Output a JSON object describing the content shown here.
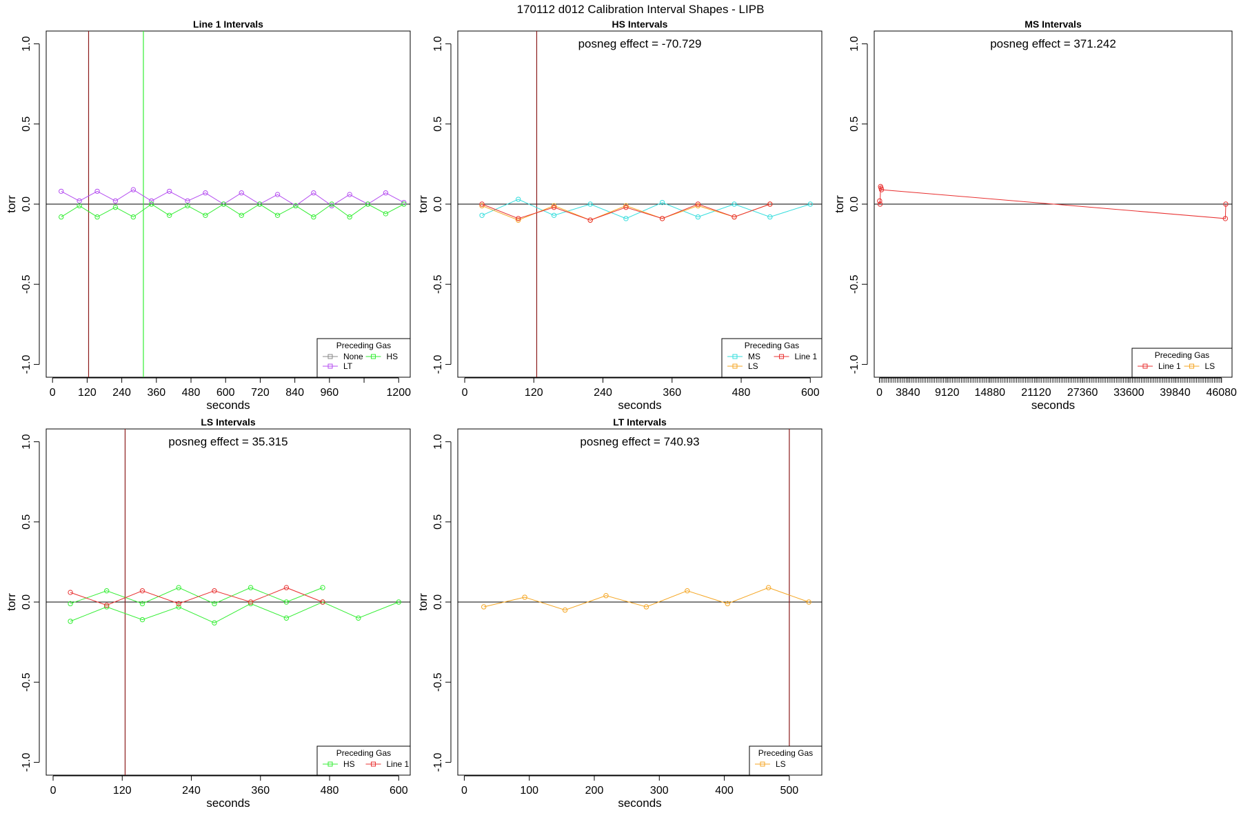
{
  "page": {
    "title": "170112   d012   Calibration Interval Shapes - LIPB"
  },
  "chart_data": [
    {
      "type": "line",
      "title": "Line 1 Intervals",
      "xlabel": "seconds",
      "ylabel": "torr",
      "xlim": [
        -22,
        1240
      ],
      "ylim": [
        -1.08,
        1.08
      ],
      "xticks": [
        0,
        120,
        240,
        360,
        480,
        600,
        720,
        840,
        960,
        1080,
        1200
      ],
      "xtick_labels": [
        "0",
        "120",
        "240",
        "360",
        "480",
        "600",
        "720",
        "840",
        "960",
        "",
        "1200"
      ],
      "yticks": [
        -1.0,
        -0.5,
        0.0,
        0.5,
        1.0
      ],
      "ytick_labels": [
        "-1.0",
        "-0.5",
        "0.0",
        "0.5",
        "1.0"
      ],
      "annotation": "",
      "vlines": [
        {
          "x": 125,
          "color": "#8b1a1a"
        },
        {
          "x": 315,
          "color": "#33ee33"
        }
      ],
      "legend": {
        "title": "Preceding Gas",
        "position": "bottom-right",
        "entries": [
          {
            "label": "None",
            "color": "#888888"
          },
          {
            "label": "HS",
            "color": "#33ee33"
          },
          {
            "label": "LT",
            "color": "#b44cf0"
          }
        ]
      },
      "series": [
        {
          "name": "LT",
          "color": "#b44cf0",
          "x": [
            30,
            93,
            155,
            218,
            280,
            343,
            405,
            468,
            530,
            593,
            655,
            718,
            780,
            843,
            905,
            968,
            1030,
            1093,
            1155,
            1218
          ],
          "y": [
            0.08,
            0.02,
            0.08,
            0.02,
            0.09,
            0.02,
            0.08,
            0.02,
            0.07,
            0.0,
            0.07,
            0.0,
            0.06,
            -0.01,
            0.07,
            -0.01,
            0.06,
            0.0,
            0.07,
            0.01
          ]
        },
        {
          "name": "HS",
          "color": "#33ee33",
          "x": [
            30,
            93,
            155,
            218,
            280,
            343,
            405,
            468,
            530,
            593,
            655,
            718,
            780,
            843,
            905,
            968,
            1030,
            1093,
            1155,
            1218
          ],
          "y": [
            -0.08,
            -0.01,
            -0.08,
            -0.02,
            -0.08,
            0.0,
            -0.07,
            -0.01,
            -0.07,
            0.0,
            -0.07,
            0.0,
            -0.07,
            -0.01,
            -0.08,
            0.0,
            -0.08,
            0.0,
            -0.06,
            0.0
          ]
        }
      ]
    },
    {
      "type": "line",
      "title": "HS Intervals",
      "xlabel": "seconds",
      "ylabel": "torr",
      "xlim": [
        -12,
        620
      ],
      "ylim": [
        -1.08,
        1.08
      ],
      "xticks": [
        0,
        120,
        240,
        360,
        480,
        600
      ],
      "xtick_labels": [
        "0",
        "120",
        "240",
        "360",
        "480",
        "600"
      ],
      "yticks": [
        -1.0,
        -0.5,
        0.0,
        0.5,
        1.0
      ],
      "ytick_labels": [
        "-1.0",
        "-0.5",
        "0.0",
        "0.5",
        "1.0"
      ],
      "annotation": "posneg effect = -70.729",
      "vlines": [
        {
          "x": 125,
          "color": "#8b1a1a"
        }
      ],
      "legend": {
        "title": "Preceding Gas",
        "position": "bottom-right",
        "entries": [
          {
            "label": "MS",
            "color": "#33dddd"
          },
          {
            "label": "Line 1",
            "color": "#e83030"
          },
          {
            "label": "LS",
            "color": "#f5a623"
          }
        ]
      },
      "series": [
        {
          "name": "MS",
          "color": "#33dddd",
          "x": [
            30,
            93,
            155,
            218,
            280,
            343,
            405,
            468,
            530,
            600
          ],
          "y": [
            -0.07,
            0.03,
            -0.07,
            0.0,
            -0.09,
            0.01,
            -0.08,
            0.0,
            -0.08,
            0.0
          ]
        },
        {
          "name": "LS",
          "color": "#f5a623",
          "x": [
            30,
            93,
            155,
            218,
            280,
            343,
            405,
            468,
            530
          ],
          "y": [
            -0.01,
            -0.1,
            -0.01,
            -0.1,
            -0.01,
            -0.09,
            -0.01,
            -0.08,
            0.0
          ]
        },
        {
          "name": "Line 1",
          "color": "#e83030",
          "x": [
            30,
            93,
            155,
            218,
            280,
            343,
            405,
            468,
            530
          ],
          "y": [
            0.0,
            -0.09,
            -0.02,
            -0.1,
            -0.02,
            -0.09,
            0.0,
            -0.08,
            0.0
          ]
        }
      ]
    },
    {
      "type": "line",
      "title": "MS Intervals",
      "xlabel": "seconds",
      "ylabel": "torr",
      "xlim": [
        -700,
        47500
      ],
      "ylim": [
        -1.08,
        1.08
      ],
      "xticks": [
        0,
        3840,
        9120,
        14880,
        21120,
        27360,
        33600,
        39840,
        46080
      ],
      "xtick_labels": [
        "0",
        "3840",
        "9120",
        "14880",
        "21120",
        "27360",
        "33600",
        "39840",
        "46080"
      ],
      "minor_tick_step": 240,
      "yticks": [
        -1.0,
        -0.5,
        0.0,
        0.5,
        1.0
      ],
      "ytick_labels": [
        "-1.0",
        "-0.5",
        "0.0",
        "0.5",
        "1.0"
      ],
      "annotation": "posneg effect = 371.242",
      "vlines": [],
      "legend": {
        "title": "Preceding Gas",
        "position": "bottom-right",
        "entries": [
          {
            "label": "Line 1",
            "color": "#e83030"
          },
          {
            "label": "LS",
            "color": "#f5a623"
          }
        ]
      },
      "series": [
        {
          "name": "Line 1",
          "color": "#e83030",
          "x": [
            30,
            93,
            155,
            218,
            280,
            46600,
            46660
          ],
          "y": [
            0.02,
            0.0,
            0.11,
            0.1,
            0.09,
            -0.09,
            0.0
          ]
        }
      ]
    },
    {
      "type": "line",
      "title": "LS Intervals",
      "xlabel": "seconds",
      "ylabel": "torr",
      "xlim": [
        -12,
        620
      ],
      "ylim": [
        -1.08,
        1.08
      ],
      "xticks": [
        0,
        120,
        240,
        360,
        480,
        600
      ],
      "xtick_labels": [
        "0",
        "120",
        "240",
        "360",
        "480",
        "600"
      ],
      "yticks": [
        -1.0,
        -0.5,
        0.0,
        0.5,
        1.0
      ],
      "ytick_labels": [
        "-1.0",
        "-0.5",
        "0.0",
        "0.5",
        "1.0"
      ],
      "annotation": "posneg effect = 35.315",
      "vlines": [
        {
          "x": 125,
          "color": "#8b1a1a"
        }
      ],
      "legend": {
        "title": "Preceding Gas",
        "position": "bottom-right",
        "entries": [
          {
            "label": "HS",
            "color": "#33ee33"
          },
          {
            "label": "Line 1",
            "color": "#e83030"
          }
        ]
      },
      "series": [
        {
          "name": "HS",
          "color": "#33ee33",
          "x": [
            30,
            93,
            155,
            218,
            280,
            343,
            405,
            468,
            530,
            600
          ],
          "y": [
            -0.12,
            -0.03,
            -0.11,
            -0.03,
            -0.13,
            -0.01,
            -0.1,
            0.0,
            -0.1,
            0.0
          ]
        },
        {
          "name": "HS",
          "color": "#33ee33",
          "x": [
            30,
            93,
            155,
            218,
            280,
            343,
            405,
            468
          ],
          "y": [
            -0.01,
            0.07,
            -0.01,
            0.09,
            -0.01,
            0.09,
            0.0,
            0.09
          ]
        },
        {
          "name": "Line 1",
          "color": "#e83030",
          "x": [
            30,
            93,
            155,
            218,
            280,
            343,
            405,
            468
          ],
          "y": [
            0.06,
            -0.02,
            0.07,
            -0.01,
            0.07,
            0.0,
            0.09,
            0.0
          ]
        }
      ]
    },
    {
      "type": "line",
      "title": "LT Intervals",
      "xlabel": "seconds",
      "ylabel": "torr",
      "xlim": [
        -10,
        550
      ],
      "ylim": [
        -1.08,
        1.08
      ],
      "xticks": [
        0,
        100,
        200,
        300,
        400,
        500
      ],
      "xtick_labels": [
        "0",
        "100",
        "200",
        "300",
        "400",
        "500"
      ],
      "yticks": [
        -1.0,
        -0.5,
        0.0,
        0.5,
        1.0
      ],
      "ytick_labels": [
        "-1.0",
        "-0.5",
        "0.0",
        "0.5",
        "1.0"
      ],
      "annotation": "posneg effect = 740.93",
      "vlines": [
        {
          "x": 500,
          "color": "#8b1a1a"
        }
      ],
      "legend": {
        "title": "Preceding Gas",
        "position": "bottom-right",
        "entries": [
          {
            "label": "LS",
            "color": "#f5a623"
          }
        ]
      },
      "series": [
        {
          "name": "LS",
          "color": "#f5a623",
          "x": [
            30,
            93,
            155,
            218,
            280,
            343,
            405,
            468,
            530
          ],
          "y": [
            -0.03,
            0.03,
            -0.05,
            0.04,
            -0.03,
            0.07,
            -0.01,
            0.09,
            0.0
          ]
        }
      ]
    }
  ]
}
